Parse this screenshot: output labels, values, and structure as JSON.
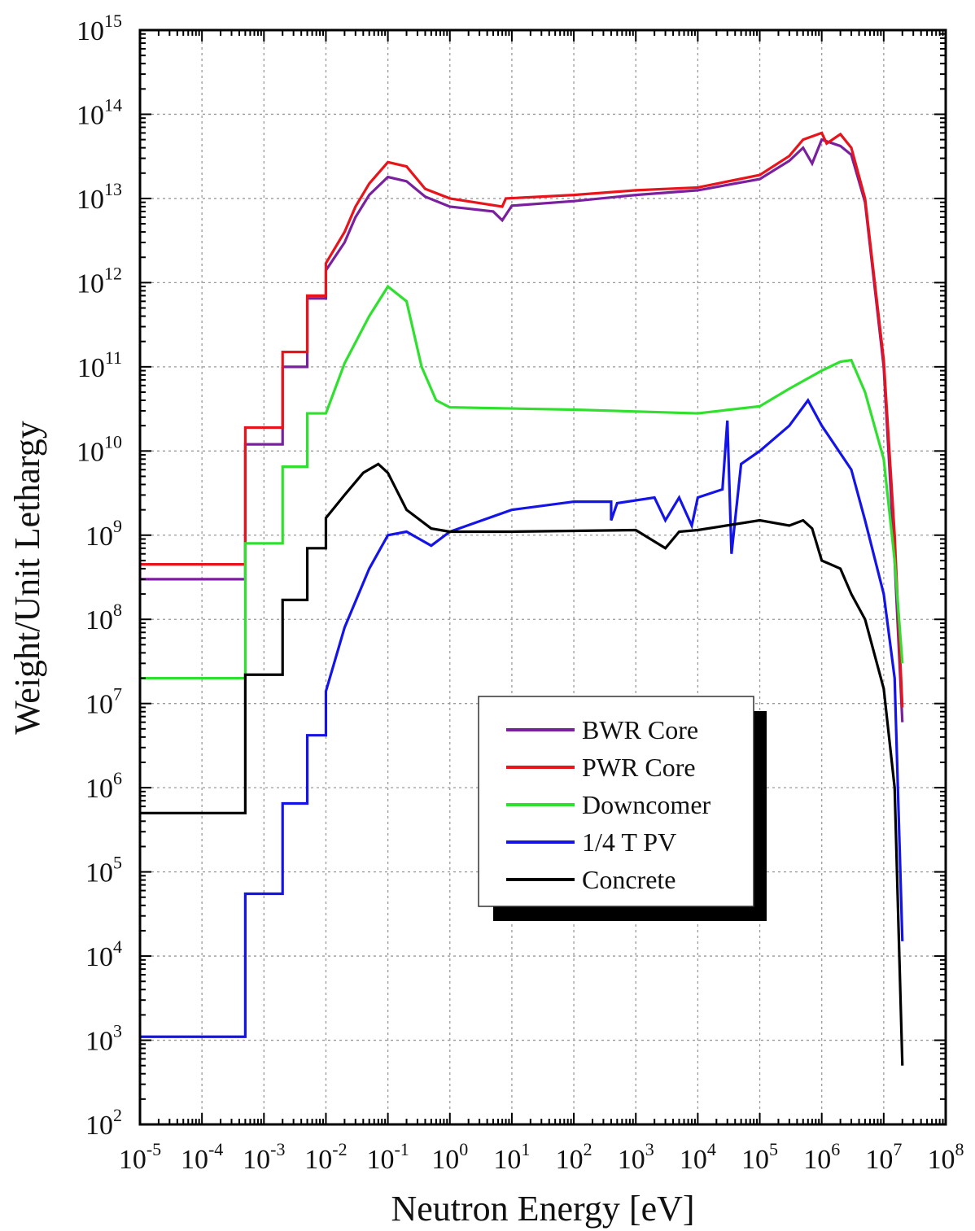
{
  "chart_data": {
    "type": "line",
    "xlabel": "Neutron Energy [eV]",
    "ylabel": "Weight/Unit Lethargy",
    "x_scale": "log",
    "y_scale": "log",
    "xlim": [
      1e-05,
      100000000.0
    ],
    "ylim": [
      100.0,
      1000000000000000.0
    ],
    "grid": true,
    "legend_position": "lower-center",
    "x_ticks": [
      {
        "base": "10",
        "exp": "-5",
        "value": 1e-05
      },
      {
        "base": "10",
        "exp": "-4",
        "value": 0.0001
      },
      {
        "base": "10",
        "exp": "-3",
        "value": 0.001
      },
      {
        "base": "10",
        "exp": "-2",
        "value": 0.01
      },
      {
        "base": "10",
        "exp": "-1",
        "value": 0.1
      },
      {
        "base": "10",
        "exp": "0",
        "value": 1
      },
      {
        "base": "10",
        "exp": "1",
        "value": 10
      },
      {
        "base": "10",
        "exp": "2",
        "value": 100
      },
      {
        "base": "10",
        "exp": "3",
        "value": 1000
      },
      {
        "base": "10",
        "exp": "4",
        "value": 10000
      },
      {
        "base": "10",
        "exp": "5",
        "value": 100000
      },
      {
        "base": "10",
        "exp": "6",
        "value": 1000000
      },
      {
        "base": "10",
        "exp": "7",
        "value": 10000000
      },
      {
        "base": "10",
        "exp": "8",
        "value": 100000000
      }
    ],
    "y_ticks": [
      {
        "base": "10",
        "exp": "2",
        "value": 100.0
      },
      {
        "base": "10",
        "exp": "3",
        "value": 1000.0
      },
      {
        "base": "10",
        "exp": "4",
        "value": 10000.0
      },
      {
        "base": "10",
        "exp": "5",
        "value": 100000.0
      },
      {
        "base": "10",
        "exp": "6",
        "value": 1000000.0
      },
      {
        "base": "10",
        "exp": "7",
        "value": 10000000.0
      },
      {
        "base": "10",
        "exp": "8",
        "value": 100000000.0
      },
      {
        "base": "10",
        "exp": "9",
        "value": 1000000000.0
      },
      {
        "base": "10",
        "exp": "10",
        "value": 10000000000.0
      },
      {
        "base": "10",
        "exp": "11",
        "value": 100000000000.0
      },
      {
        "base": "10",
        "exp": "12",
        "value": 1000000000000.0
      },
      {
        "base": "10",
        "exp": "13",
        "value": 10000000000000.0
      },
      {
        "base": "10",
        "exp": "14",
        "value": 100000000000000.0
      },
      {
        "base": "10",
        "exp": "15",
        "value": 1000000000000000.0
      }
    ],
    "series": [
      {
        "name": "BWR Core",
        "color": "#7a1f9e",
        "points": [
          [
            1e-05,
            300000000.0
          ],
          [
            0.0005,
            300000000.0
          ],
          [
            0.0005,
            12000000000.0
          ],
          [
            0.002,
            12000000000.0
          ],
          [
            0.002,
            100000000000.0
          ],
          [
            0.005,
            100000000000.0
          ],
          [
            0.005,
            650000000000.0
          ],
          [
            0.01,
            650000000000.0
          ],
          [
            0.01,
            1400000000000.0
          ],
          [
            0.02,
            3000000000000.0
          ],
          [
            0.03,
            6000000000000.0
          ],
          [
            0.05,
            11000000000000.0
          ],
          [
            0.1,
            18000000000000.0
          ],
          [
            0.2,
            16000000000000.0
          ],
          [
            0.4,
            10500000000000.0
          ],
          [
            1,
            8000000000000.0
          ],
          [
            5,
            7000000000000.0
          ],
          [
            7,
            5500000000000.0
          ],
          [
            10,
            8200000000000.0
          ],
          [
            100,
            9300000000000.0
          ],
          [
            1000.0,
            11000000000000.0
          ],
          [
            10000.0,
            12500000000000.0
          ],
          [
            100000.0,
            17000000000000.0
          ],
          [
            300000.0,
            28000000000000.0
          ],
          [
            500000.0,
            40000000000000.0
          ],
          [
            700000.0,
            26000000000000.0
          ],
          [
            1000000.0,
            50000000000000.0
          ],
          [
            2000000.0,
            42000000000000.0
          ],
          [
            3000000.0,
            33000000000000.0
          ],
          [
            5000000.0,
            9000000000000.0
          ],
          [
            10000000.0,
            100000000000.0
          ],
          [
            15000000.0,
            500000000.0
          ],
          [
            20000000.0,
            6000000.0
          ]
        ]
      },
      {
        "name": "PWR Core",
        "color": "#e8141b",
        "points": [
          [
            1e-05,
            450000000.0
          ],
          [
            0.0005,
            450000000.0
          ],
          [
            0.0005,
            19000000000.0
          ],
          [
            0.002,
            19000000000.0
          ],
          [
            0.002,
            150000000000.0
          ],
          [
            0.005,
            150000000000.0
          ],
          [
            0.005,
            700000000000.0
          ],
          [
            0.01,
            700000000000.0
          ],
          [
            0.01,
            1700000000000.0
          ],
          [
            0.02,
            4000000000000.0
          ],
          [
            0.03,
            8000000000000.0
          ],
          [
            0.05,
            15000000000000.0
          ],
          [
            0.1,
            27000000000000.0
          ],
          [
            0.2,
            24000000000000.0
          ],
          [
            0.4,
            13000000000000.0
          ],
          [
            1,
            10000000000000.0
          ],
          [
            7,
            8000000000000.0
          ],
          [
            8,
            10000000000000.0
          ],
          [
            100,
            11000000000000.0
          ],
          [
            1000.0,
            12500000000000.0
          ],
          [
            10000.0,
            13500000000000.0
          ],
          [
            100000.0,
            19000000000000.0
          ],
          [
            300000.0,
            32000000000000.0
          ],
          [
            500000.0,
            50000000000000.0
          ],
          [
            1000000.0,
            60000000000000.0
          ],
          [
            1200000.0,
            45000000000000.0
          ],
          [
            2000000.0,
            58000000000000.0
          ],
          [
            3000000.0,
            40000000000000.0
          ],
          [
            5000000.0,
            10000000000000.0
          ],
          [
            10000000.0,
            120000000000.0
          ],
          [
            15000000.0,
            1000000000.0
          ],
          [
            20000000.0,
            9000000.0
          ]
        ]
      },
      {
        "name": "Downcomer",
        "color": "#2fe02f",
        "points": [
          [
            1e-05,
            20000000.0
          ],
          [
            0.0005,
            20000000.0
          ],
          [
            0.0005,
            800000000.0
          ],
          [
            0.002,
            800000000.0
          ],
          [
            0.002,
            6500000000.0
          ],
          [
            0.005,
            6500000000.0
          ],
          [
            0.005,
            28000000000.0
          ],
          [
            0.01,
            28000000000.0
          ],
          [
            0.02,
            110000000000.0
          ],
          [
            0.05,
            400000000000.0
          ],
          [
            0.1,
            900000000000.0
          ],
          [
            0.2,
            600000000000.0
          ],
          [
            0.35,
            100000000000.0
          ],
          [
            0.6,
            40000000000.0
          ],
          [
            1,
            33000000000.0
          ],
          [
            100,
            31000000000.0
          ],
          [
            10000.0,
            28000000000.0
          ],
          [
            100000.0,
            34000000000.0
          ],
          [
            300000.0,
            55000000000.0
          ],
          [
            1000000.0,
            90000000000.0
          ],
          [
            2000000.0,
            115000000000.0
          ],
          [
            3000000.0,
            120000000000.0
          ],
          [
            5000000.0,
            50000000000.0
          ],
          [
            10000000.0,
            8000000000.0
          ],
          [
            15000000.0,
            500000000.0
          ],
          [
            20000000.0,
            30000000.0
          ]
        ]
      },
      {
        "name": "1/4 T PV",
        "color": "#1414e8",
        "points": [
          [
            1e-05,
            1100.0
          ],
          [
            0.0005,
            1100.0
          ],
          [
            0.0005,
            55000.0
          ],
          [
            0.002,
            55000.0
          ],
          [
            0.002,
            650000.0
          ],
          [
            0.005,
            650000.0
          ],
          [
            0.005,
            4200000.0
          ],
          [
            0.01,
            4200000.0
          ],
          [
            0.01,
            14000000.0
          ],
          [
            0.02,
            80000000.0
          ],
          [
            0.05,
            400000000.0
          ],
          [
            0.1,
            1000000000.0
          ],
          [
            0.2,
            1100000000.0
          ],
          [
            0.5,
            750000000.0
          ],
          [
            1,
            1100000000.0
          ],
          [
            10,
            2000000000.0
          ],
          [
            100,
            2500000000.0
          ],
          [
            400,
            2500000000.0
          ],
          [
            400,
            1500000000.0
          ],
          [
            500,
            2400000000.0
          ],
          [
            2000.0,
            2800000000.0
          ],
          [
            3000.0,
            1500000000.0
          ],
          [
            5000.0,
            2800000000.0
          ],
          [
            8000.0,
            1300000000.0
          ],
          [
            10000.0,
            2800000000.0
          ],
          [
            25000.0,
            3500000000.0
          ],
          [
            30000.0,
            23000000000.0
          ],
          [
            35000.0,
            600000000.0
          ],
          [
            50000.0,
            7000000000.0
          ],
          [
            100000.0,
            10000000000.0
          ],
          [
            300000.0,
            20000000000.0
          ],
          [
            600000.0,
            40000000000.0
          ],
          [
            1000000.0,
            20000000000.0
          ],
          [
            3000000.0,
            6000000000.0
          ],
          [
            5000000.0,
            1500000000.0
          ],
          [
            10000000.0,
            200000000.0
          ],
          [
            15000000.0,
            20000000.0
          ],
          [
            20000000.0,
            15000.0
          ]
        ]
      },
      {
        "name": "Concrete",
        "color": "#000000",
        "points": [
          [
            1e-05,
            500000.0
          ],
          [
            0.0005,
            500000.0
          ],
          [
            0.0005,
            22000000.0
          ],
          [
            0.002,
            22000000.0
          ],
          [
            0.002,
            170000000.0
          ],
          [
            0.005,
            170000000.0
          ],
          [
            0.005,
            700000000.0
          ],
          [
            0.01,
            700000000.0
          ],
          [
            0.01,
            1600000000.0
          ],
          [
            0.02,
            3000000000.0
          ],
          [
            0.04,
            5500000000.0
          ],
          [
            0.07,
            7000000000.0
          ],
          [
            0.1,
            5500000000.0
          ],
          [
            0.2,
            2000000000.0
          ],
          [
            0.5,
            1200000000.0
          ],
          [
            1,
            1100000000.0
          ],
          [
            10,
            1100000000.0
          ],
          [
            1000.0,
            1150000000.0
          ],
          [
            3000.0,
            700000000.0
          ],
          [
            5000.0,
            1100000000.0
          ],
          [
            10000.0,
            1150000000.0
          ],
          [
            100000.0,
            1500000000.0
          ],
          [
            300000.0,
            1300000000.0
          ],
          [
            500000.0,
            1500000000.0
          ],
          [
            700000.0,
            1200000000.0
          ],
          [
            1000000.0,
            500000000.0
          ],
          [
            2000000.0,
            400000000.0
          ],
          [
            3000000.0,
            200000000.0
          ],
          [
            5000000.0,
            100000000.0
          ],
          [
            10000000.0,
            15000000.0
          ],
          [
            15000000.0,
            1000000.0
          ],
          [
            20000000.0,
            500.0
          ]
        ]
      }
    ]
  }
}
